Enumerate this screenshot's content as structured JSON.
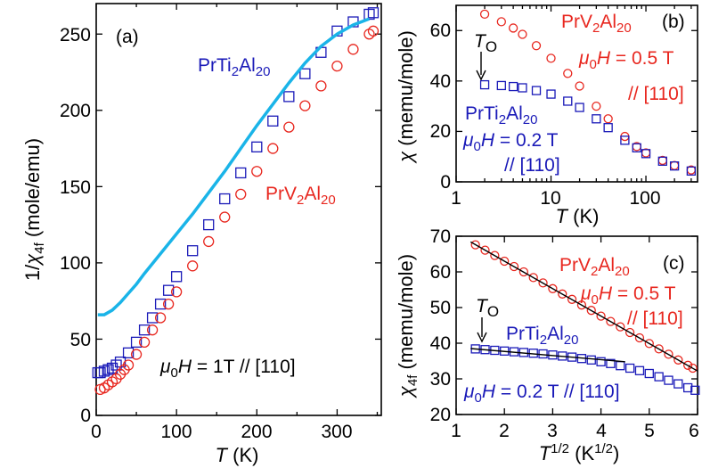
{
  "colors": {
    "red": "#e8271f",
    "blue": "#1a1ab8",
    "cyan": "#1ab4e8",
    "black": "#000000"
  },
  "chart_data": [
    {
      "panel": "(a)",
      "type": "scatter",
      "xlabel": "T (K)",
      "ylabel": "1/χ4f (mole/emu)",
      "xlim": [
        0,
        355
      ],
      "ylim": [
        0,
        270
      ],
      "x_ticks": [
        "0",
        "100",
        "200",
        "300"
      ],
      "y_ticks": [
        "0",
        "50",
        "100",
        "150",
        "200",
        "250"
      ],
      "annotations": {
        "field": "μ0H = 1T // [110]",
        "label_ti": "PrTi2Al20",
        "label_v": "PrV2Al20"
      },
      "series": [
        {
          "name": "PrTi2Al20",
          "marker": "square",
          "color": "#1a1ab8",
          "x": [
            2,
            5,
            10,
            15,
            20,
            25,
            30,
            40,
            50,
            60,
            70,
            80,
            90,
            100,
            120,
            140,
            160,
            180,
            200,
            220,
            240,
            260,
            280,
            300,
            320,
            340,
            345
          ],
          "y": [
            28,
            28,
            29,
            30,
            31,
            33,
            35,
            41,
            48,
            56,
            64,
            73,
            82,
            91,
            108,
            125,
            142,
            159,
            176,
            193,
            209,
            224,
            238,
            252,
            258,
            263,
            264
          ]
        },
        {
          "name": "PrV2Al20",
          "marker": "circle",
          "color": "#e8271f",
          "x": [
            5,
            10,
            15,
            20,
            25,
            30,
            35,
            40,
            50,
            60,
            70,
            80,
            90,
            100,
            120,
            140,
            160,
            180,
            200,
            220,
            240,
            260,
            280,
            300,
            320,
            340,
            345
          ],
          "y": [
            17,
            18,
            20,
            22,
            24,
            27,
            30,
            33,
            40,
            48,
            56,
            64,
            73,
            81,
            98,
            114,
            130,
            145,
            160,
            175,
            189,
            203,
            216,
            229,
            240,
            250,
            252
          ]
        },
        {
          "name": "",
          "marker": "line",
          "color": "#1ab4e8",
          "x": [
            2,
            10,
            20,
            30,
            40,
            50,
            60,
            80,
            100,
            120,
            140,
            160,
            180,
            200,
            220,
            240,
            260,
            280,
            300,
            320,
            340
          ],
          "y": [
            66,
            66,
            69,
            74,
            80,
            86,
            93,
            106,
            119,
            132,
            146,
            160,
            175,
            190,
            204,
            218,
            231,
            242,
            250,
            256,
            260
          ]
        }
      ]
    },
    {
      "panel": "(b)",
      "type": "scatter",
      "xscale": "log",
      "xlabel": "T (K)",
      "ylabel": "χ (memu/mole)",
      "xlim": [
        1,
        350
      ],
      "ylim": [
        0,
        70
      ],
      "x_ticks": [
        "1",
        "10",
        "100"
      ],
      "y_ticks": [
        "0",
        "20",
        "40",
        "60"
      ],
      "annotations": {
        "to": "TO",
        "label_v": "PrV2Al20",
        "field_v": "μ0H = 0.5 T",
        "dir_v": "// [110]",
        "label_ti": "PrTi2Al20",
        "field_ti": "μ0H = 0.2 T",
        "dir_ti": "// [110]"
      },
      "series": [
        {
          "name": "PrV2Al20",
          "marker": "circle",
          "color": "#e8271f",
          "x": [
            2,
            3,
            4,
            5,
            7,
            10,
            15,
            20,
            30,
            40,
            60,
            80,
            100,
            150,
            200,
            300
          ],
          "y": [
            66.5,
            63.5,
            61,
            58.5,
            54,
            49,
            43,
            38,
            30,
            25,
            18,
            14,
            11.5,
            8.5,
            6.5,
            4.7
          ]
        },
        {
          "name": "PrTi2Al20",
          "marker": "square",
          "color": "#1a1ab8",
          "x": [
            2,
            3,
            4,
            5,
            7,
            10,
            15,
            20,
            30,
            40,
            60,
            80,
            100,
            150,
            200,
            300
          ],
          "y": [
            38.5,
            38.2,
            37.8,
            37.3,
            36.2,
            34.8,
            32,
            29.5,
            25,
            21.5,
            16.5,
            13.5,
            11.2,
            8.2,
            6.3,
            4.3
          ]
        }
      ]
    },
    {
      "panel": "(c)",
      "type": "scatter",
      "xlabel": "T^1/2 (K^1/2)",
      "ylabel": "χ4f (memu/mole)",
      "xlim": [
        1,
        6
      ],
      "ylim": [
        20,
        70
      ],
      "x_ticks": [
        "1",
        "2",
        "3",
        "4",
        "5",
        "6"
      ],
      "y_ticks": [
        "20",
        "30",
        "40",
        "50",
        "60",
        "70"
      ],
      "annotations": {
        "to": "TO",
        "label_v": "PrV2Al20",
        "panel_tag": "(c)",
        "field_v": "μ0H = 0.5 T",
        "dir_v": "// [110]",
        "label_ti": "PrTi2Al20",
        "field_ti": "μ0H = 0.2 T // [110]"
      },
      "series": [
        {
          "name": "PrV2Al20",
          "marker": "circle",
          "color": "#e8271f",
          "x": [
            1.4,
            1.6,
            1.8,
            2.0,
            2.2,
            2.4,
            2.6,
            2.8,
            3.0,
            3.2,
            3.4,
            3.6,
            3.8,
            4.0,
            4.2,
            4.4,
            4.6,
            4.8,
            5.0,
            5.2,
            5.4,
            5.6,
            5.8,
            5.9
          ],
          "y": [
            67.6,
            66.1,
            64.6,
            63.0,
            61.5,
            60.0,
            58.4,
            56.9,
            55.3,
            53.8,
            52.3,
            50.7,
            49.2,
            47.6,
            46.1,
            44.6,
            43.0,
            41.5,
            39.9,
            38.4,
            36.9,
            35.3,
            33.8,
            33.0
          ]
        },
        {
          "name": "PrTi2Al20",
          "marker": "square",
          "color": "#1a1ab8",
          "x": [
            1.4,
            1.6,
            1.8,
            2.0,
            2.2,
            2.4,
            2.6,
            2.8,
            3.0,
            3.2,
            3.4,
            3.6,
            3.8,
            4.0,
            4.2,
            4.4,
            4.6,
            4.8,
            5.0,
            5.2,
            5.4,
            5.6,
            5.8,
            5.95
          ],
          "y": [
            38.4,
            38.2,
            38.0,
            37.8,
            37.6,
            37.4,
            37.2,
            37.0,
            36.7,
            36.4,
            36.1,
            35.7,
            35.3,
            34.8,
            34.3,
            33.7,
            33.0,
            32.3,
            31.5,
            30.6,
            29.6,
            28.6,
            27.5,
            26.8
          ]
        }
      ],
      "fit_lines": [
        {
          "x": [
            1.3,
            6.0
          ],
          "y": [
            68.4,
            32.2
          ],
          "color": "#000000"
        },
        {
          "x": [
            1.3,
            4.5
          ],
          "y": [
            38.5,
            34.8
          ],
          "color": "#000000"
        }
      ]
    }
  ]
}
